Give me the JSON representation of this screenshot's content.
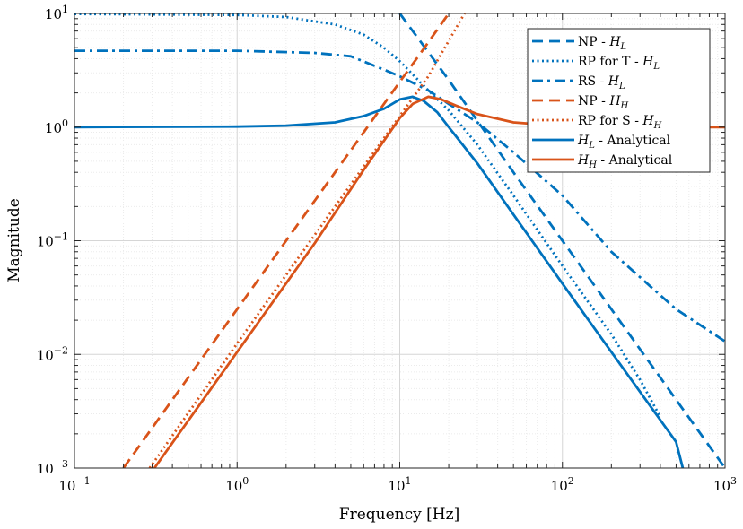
{
  "chart_data": {
    "type": "line",
    "title": "",
    "xlabel": "Frequency [Hz]",
    "ylabel": "Magnitude",
    "xscale": "log",
    "yscale": "log",
    "xlim": [
      0.1,
      1000
    ],
    "ylim": [
      0.001,
      10
    ],
    "grid": true,
    "legend_position": "top-right",
    "x_ticks": [
      {
        "base": "10",
        "exp": "−1"
      },
      {
        "base": "10",
        "exp": "0"
      },
      {
        "base": "10",
        "exp": "1"
      },
      {
        "base": "10",
        "exp": "2"
      },
      {
        "base": "10",
        "exp": "3"
      }
    ],
    "y_ticks": [
      {
        "base": "10",
        "exp": "1"
      },
      {
        "base": "10",
        "exp": "0"
      },
      {
        "base": "10",
        "exp": "−1"
      },
      {
        "base": "10",
        "exp": "−2"
      },
      {
        "base": "10",
        "exp": "−3"
      }
    ],
    "colors": {
      "blue": "#0072BD",
      "orange": "#D95319"
    },
    "series": [
      {
        "name_main": "NP - ",
        "name_math": "H",
        "name_sub": "L",
        "name_tail": "",
        "color": "blue",
        "style": "dashed",
        "x": [
          10,
          20,
          50,
          100,
          200,
          500,
          1000
        ],
        "y": [
          10,
          2.6,
          0.4,
          0.1,
          0.025,
          0.004,
          0.001
        ]
      },
      {
        "name_main": "RP for T - ",
        "name_math": "H",
        "name_sub": "L",
        "name_tail": "",
        "color": "blue",
        "style": "dotted",
        "x": [
          0.1,
          1,
          2,
          4,
          6,
          8,
          10,
          15,
          20,
          30,
          50,
          100,
          200,
          300,
          400
        ],
        "y": [
          9.9,
          9.7,
          9.3,
          8.0,
          6.5,
          5.0,
          3.8,
          2.1,
          1.4,
          0.7,
          0.25,
          0.06,
          0.015,
          0.006,
          0.0028
        ]
      },
      {
        "name_main": "RS - ",
        "name_math": "H",
        "name_sub": "L",
        "name_tail": "",
        "color": "blue",
        "style": "dashdot",
        "x": [
          0.1,
          1,
          3,
          5,
          8,
          10,
          15,
          20,
          30,
          50,
          100,
          200,
          500,
          1000
        ],
        "y": [
          4.7,
          4.7,
          4.5,
          4.2,
          3.2,
          2.8,
          2.1,
          1.6,
          1.1,
          0.6,
          0.25,
          0.08,
          0.025,
          0.013
        ]
      },
      {
        "name_main": "NP - ",
        "name_math": "H",
        "name_sub": "H",
        "name_tail": "",
        "color": "orange",
        "style": "dashed",
        "x": [
          0.2,
          1,
          10,
          13,
          20
        ],
        "y": [
          0.001,
          0.025,
          2.5,
          4.2,
          10
        ]
      },
      {
        "name_main": "RP for S - ",
        "name_math": "H",
        "name_sub": "H",
        "name_tail": "",
        "color": "orange",
        "style": "dotted",
        "x": [
          0.29,
          1,
          10,
          15,
          25
        ],
        "y": [
          0.001,
          0.0125,
          1.25,
          2.8,
          10
        ]
      },
      {
        "name_main": "",
        "name_math": "H",
        "name_sub": "L",
        "name_tail": " - Analytical",
        "color": "blue",
        "style": "solid",
        "x": [
          0.1,
          1,
          2,
          4,
          6,
          8,
          10,
          12,
          14,
          17,
          20,
          30,
          50,
          100,
          200,
          500,
          550
        ],
        "y": [
          1,
          1.01,
          1.03,
          1.1,
          1.25,
          1.45,
          1.75,
          1.85,
          1.7,
          1.35,
          1.0,
          0.48,
          0.17,
          0.042,
          0.0105,
          0.0017,
          0.001
        ]
      },
      {
        "name_main": "",
        "name_math": "H",
        "name_sub": "H",
        "name_tail": " - Analytical",
        "color": "orange",
        "style": "solid",
        "x": [
          0.31,
          1,
          3,
          6,
          10,
          12,
          15,
          18,
          22,
          30,
          50,
          100,
          200,
          1000
        ],
        "y": [
          0.001,
          0.0105,
          0.095,
          0.42,
          1.2,
          1.6,
          1.85,
          1.75,
          1.55,
          1.3,
          1.1,
          1.02,
          1.0,
          1.0
        ]
      }
    ]
  }
}
